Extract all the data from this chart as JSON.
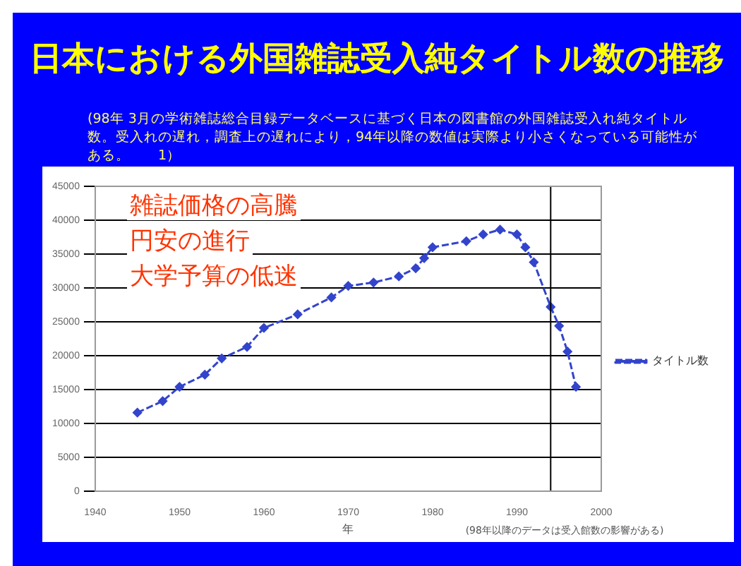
{
  "chart_data": {
    "type": "line",
    "title": "日本における外国雑誌受入純タイトル数の推移",
    "subtitle": "(98年 3月の学術雑誌総合目録データベースに基づく日本の図書館の外国雑誌受入れ純タイトル数。受入れの遅れ，調査上の遅れにより，94年以降の数値は実際より小さくなっている可能性がある。　　1）",
    "xlabel": "年",
    "annotations": [
      "雑誌価格の高騰",
      "円安の進行",
      "大学予算の低迷",
      "(98年以降のデータは受入館数の影響がある)"
    ],
    "x": [
      1945,
      1948,
      1950,
      1953,
      1955,
      1958,
      1960,
      1964,
      1968,
      1970,
      1973,
      1976,
      1978,
      1979,
      1980,
      1984,
      1986,
      1988,
      1990,
      1991,
      1992,
      1994,
      1995,
      1996,
      1997
    ],
    "series": [
      {
        "name": "タイトル数",
        "color": "#3344cc",
        "values": [
          11600,
          13300,
          15400,
          17200,
          19600,
          21300,
          24100,
          26100,
          28600,
          30300,
          30800,
          31700,
          32900,
          34400,
          36000,
          36900,
          37900,
          38600,
          37900,
          36000,
          33800,
          27200,
          24400,
          20600,
          15400
        ]
      }
    ],
    "xlim": [
      1940,
      2000
    ],
    "xticks": [
      1940,
      1950,
      1960,
      1970,
      1980,
      1990,
      2000
    ],
    "ylim": [
      0,
      45000
    ],
    "yticks": [
      0,
      5000,
      10000,
      15000,
      20000,
      25000,
      30000,
      35000,
      40000,
      45000
    ],
    "ref_lines": [
      {
        "axis": "x",
        "value": 1994,
        "color": "#000000"
      }
    ],
    "grid": "y",
    "legend": "right",
    "marker": "diamond",
    "line_style": "dashed"
  }
}
